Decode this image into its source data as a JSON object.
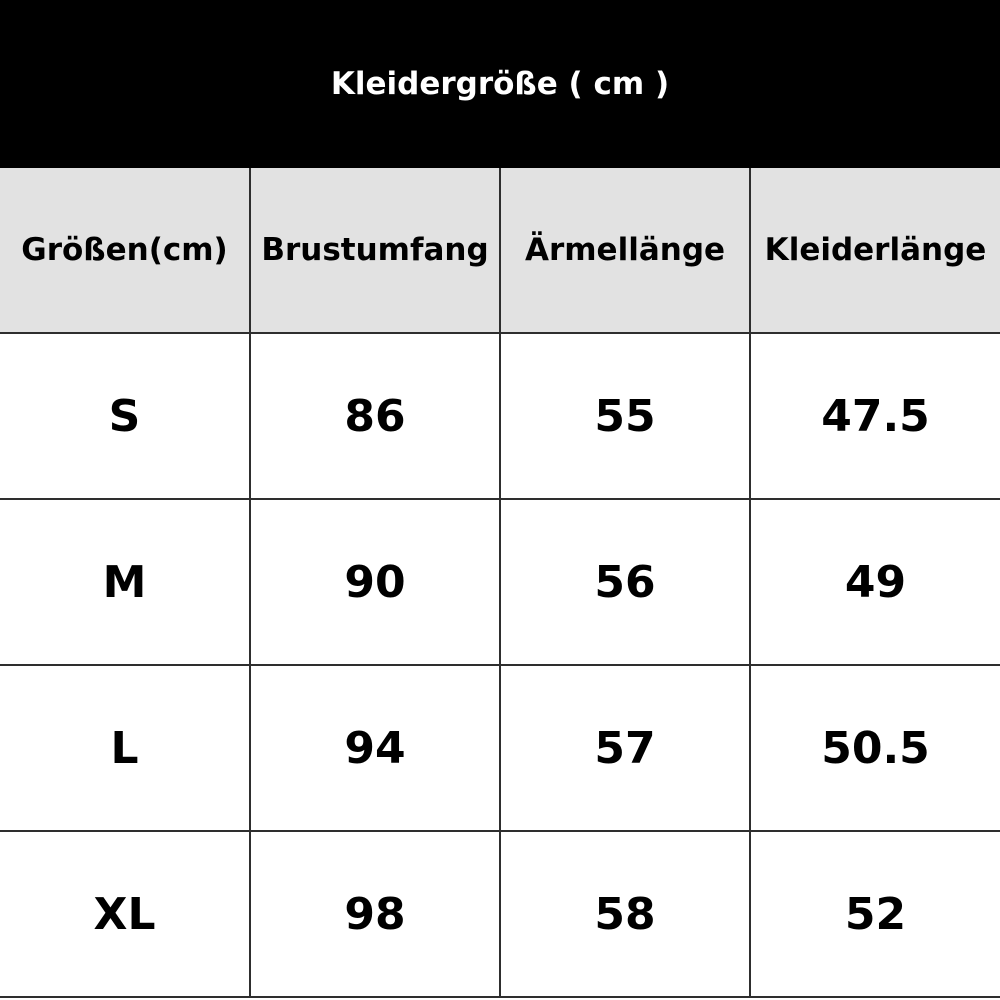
{
  "title": "Kleidergröße ( cm )",
  "table": {
    "headers": [
      "Größen(cm)",
      "Brustumfang",
      "Ärmellänge",
      "Kleiderlänge"
    ],
    "rows": [
      [
        "S",
        "86",
        "55",
        "47.5"
      ],
      [
        "M",
        "90",
        "56",
        "49"
      ],
      [
        "L",
        "94",
        "57",
        "50.5"
      ],
      [
        "XL",
        "98",
        "58",
        "52"
      ]
    ]
  },
  "colors": {
    "title_background": "#000000",
    "title_text": "#ffffff",
    "header_background": "#e2e2e2",
    "grid_line": "#2e2e2e"
  }
}
